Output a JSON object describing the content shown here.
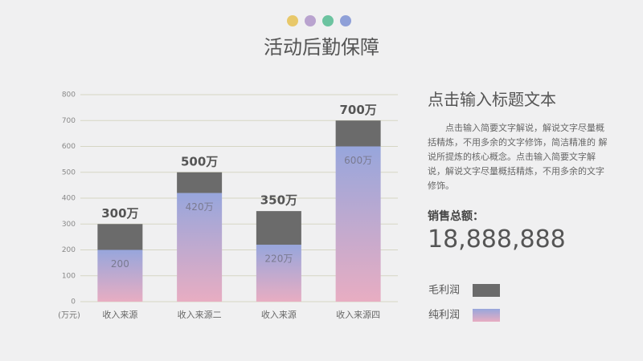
{
  "slide": {
    "title": "活动后勤保障"
  },
  "chart_data": {
    "type": "stacked-bar",
    "categories": [
      "收入来源",
      "收入来源二",
      "收入来源",
      "收入来源四"
    ],
    "series": [
      {
        "name": "纯利润",
        "color": [
          "#97a6dc",
          "#e8adc2"
        ],
        "values": [
          200,
          420,
          220,
          600
        ],
        "value_labels": [
          "200",
          "420万",
          "220万",
          "600万"
        ]
      },
      {
        "name": "毛利润",
        "color": "#6b6b6b",
        "values": [
          100,
          80,
          130,
          100
        ]
      }
    ],
    "totals": {
      "values": [
        300,
        500,
        350,
        700
      ],
      "value_labels": [
        "300万",
        "500万",
        "350万",
        "700万"
      ]
    },
    "unit_label": "(万元)",
    "ylim": [
      0,
      800
    ],
    "yticks": [
      0,
      100,
      200,
      300,
      400,
      500,
      600,
      700,
      800
    ],
    "grid": true
  },
  "panel": {
    "heading": "点击输入标题文本",
    "text": "点击输入简要文字解说，解说文字尽量概括精炼，不用多余的文字修饰，简洁精准的 解说所提炼的核心概念。点击输入简要文字解说，解说文字尽量概括精炼，不用多余的文字修饰。",
    "sales_label": "销售总额：",
    "sales_value": "18,888,888"
  }
}
